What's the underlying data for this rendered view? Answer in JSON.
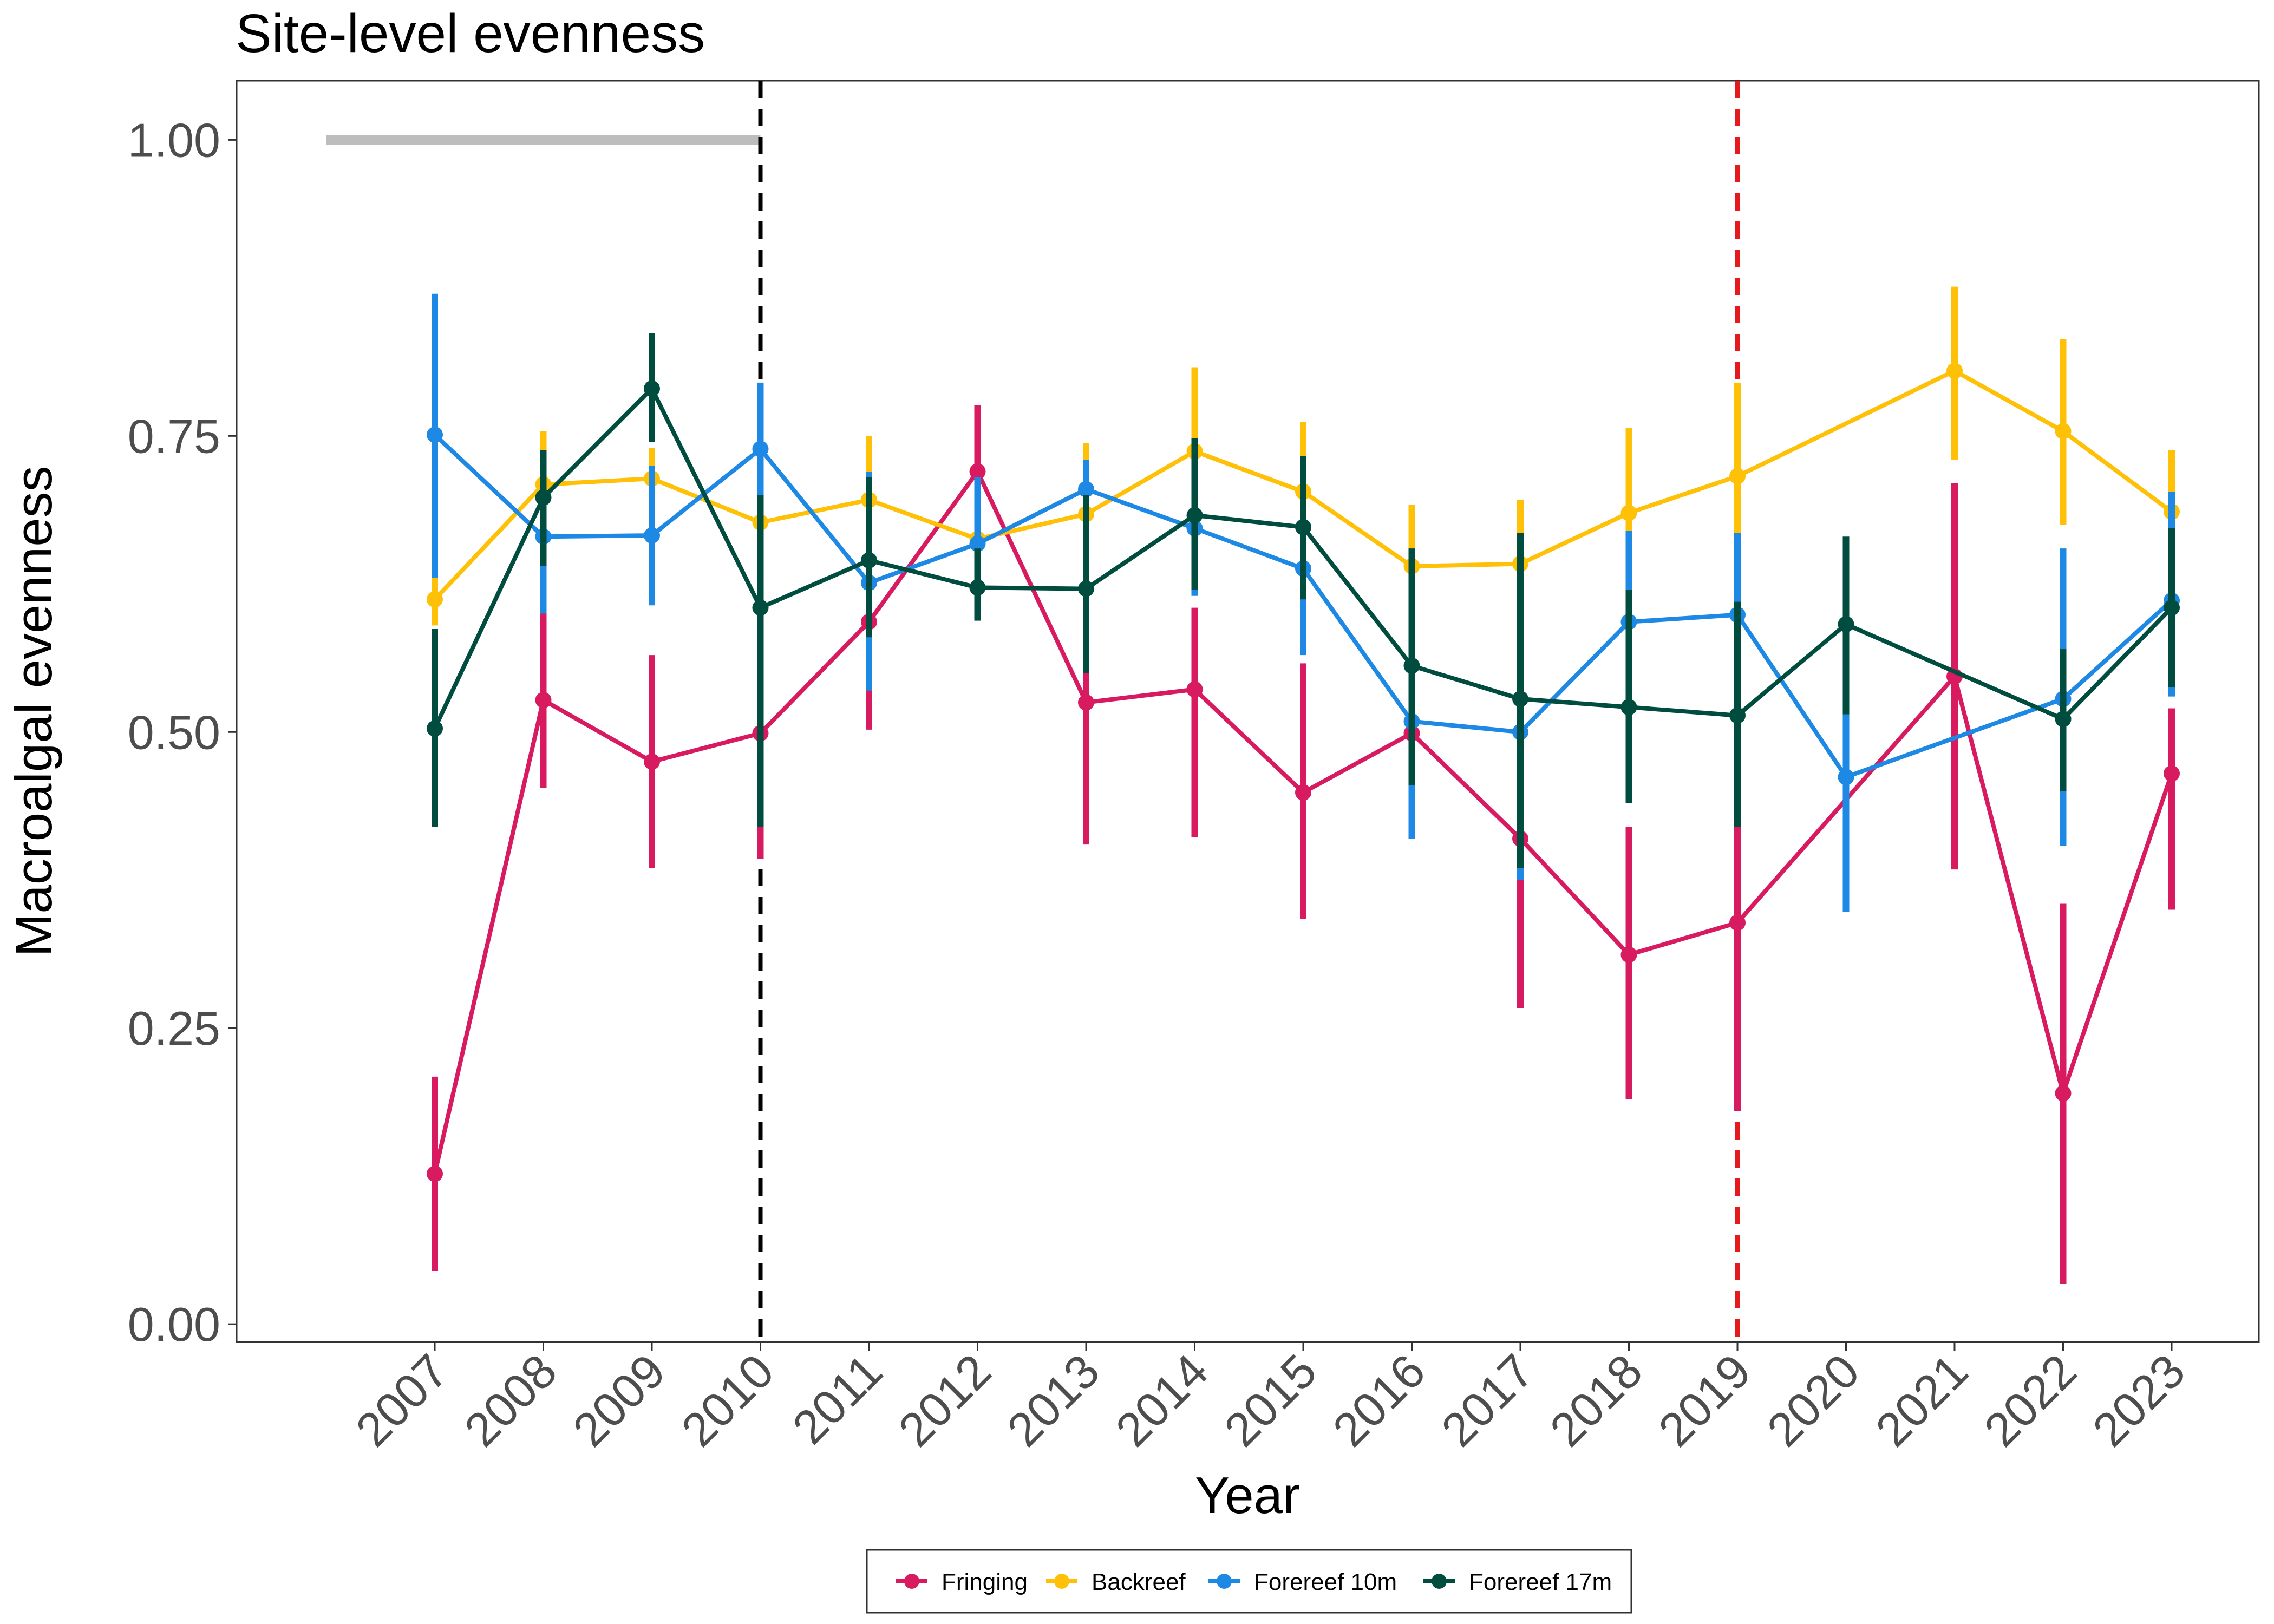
{
  "chart_data": {
    "type": "line",
    "title": "Site-level evenness",
    "xlabel": "Year",
    "ylabel": "Macroalgal evenness",
    "categories": [
      "2007",
      "2008",
      "2009",
      "2010",
      "2011",
      "2012",
      "2013",
      "2014",
      "2015",
      "2016",
      "2017",
      "2018",
      "2019",
      "2020",
      "2021",
      "2022",
      "2023"
    ],
    "ylim": [
      -0.015,
      1.05
    ],
    "yticks": [
      {
        "value": 0.0,
        "label": "0.00"
      },
      {
        "value": 0.25,
        "label": "0.25"
      },
      {
        "value": 0.5,
        "label": "0.50"
      },
      {
        "value": 0.75,
        "label": "0.75"
      },
      {
        "value": 1.0,
        "label": "1.00"
      }
    ],
    "grid": false,
    "legend_position": "bottom",
    "reference_lines": [
      {
        "type": "vertical",
        "x": "2010",
        "color": "#000000",
        "style": "dashed"
      },
      {
        "type": "vertical",
        "x": "2019",
        "color": "#e41a1c",
        "style": "dashed"
      }
    ],
    "reference_bar": {
      "y": 1.0,
      "x_start": 2006.0,
      "x_end": 2010,
      "color": "#bdbdbd"
    },
    "series": [
      {
        "name": "Fringing",
        "color": "#d81b60",
        "values": [
          0.127,
          0.527,
          0.475,
          0.499,
          0.593,
          0.72,
          0.525,
          0.536,
          0.449,
          0.499,
          0.41,
          0.312,
          0.339,
          null,
          0.547,
          0.195,
          0.465
        ],
        "lower": [
          0.045,
          0.453,
          0.385,
          0.393,
          0.502,
          0.664,
          0.405,
          0.411,
          0.342,
          null,
          0.267,
          0.19,
          0.18,
          null,
          0.384,
          0.034,
          0.35
        ],
        "upper": [
          0.209,
          0.6,
          0.565,
          0.605,
          0.685,
          0.776,
          0.645,
          0.605,
          0.558,
          null,
          0.55,
          0.42,
          0.78,
          null,
          0.71,
          0.355,
          0.52
        ]
      },
      {
        "name": "Backreef",
        "color": "#ffc107",
        "values": [
          0.612,
          0.709,
          0.714,
          0.677,
          0.696,
          0.663,
          0.684,
          0.737,
          0.703,
          0.64,
          0.642,
          0.685,
          0.716,
          null,
          0.805,
          0.754,
          0.686
        ],
        "lower": [
          0.59,
          0.665,
          0.685,
          0.62,
          0.645,
          0.615,
          0.63,
          0.67,
          0.645,
          0.595,
          0.6,
          0.62,
          0.66,
          null,
          0.73,
          0.675,
          0.635
        ],
        "upper": [
          0.632,
          0.754,
          0.74,
          0.735,
          0.75,
          0.71,
          0.744,
          0.808,
          0.762,
          0.692,
          0.696,
          0.757,
          0.795,
          null,
          0.876,
          0.832,
          0.738
        ]
      },
      {
        "name": "Forereef 10m",
        "color": "#1e88e5",
        "values": [
          0.751,
          0.665,
          0.666,
          0.739,
          0.626,
          0.659,
          0.705,
          0.672,
          0.638,
          0.509,
          0.5,
          0.593,
          0.599,
          0.462,
          null,
          0.528,
          0.611
        ],
        "lower": [
          0.63,
          0.6,
          0.607,
          0.68,
          0.535,
          0.6,
          0.64,
          0.615,
          0.565,
          0.41,
          0.375,
          0.52,
          0.53,
          0.348,
          null,
          0.404,
          0.53
        ],
        "upper": [
          0.87,
          0.73,
          0.725,
          0.795,
          0.72,
          0.715,
          0.73,
          0.73,
          0.71,
          0.61,
          0.62,
          0.67,
          0.668,
          0.515,
          null,
          0.655,
          0.703
        ]
      },
      {
        "name": "Forereef 17m",
        "color": "#004d40",
        "values": [
          0.503,
          0.698,
          0.79,
          0.605,
          0.645,
          0.622,
          0.621,
          0.683,
          0.673,
          0.556,
          0.528,
          0.521,
          0.514,
          0.591,
          null,
          0.511,
          0.605
        ],
        "lower": [
          0.42,
          0.64,
          0.745,
          0.42,
          0.58,
          0.594,
          0.55,
          0.62,
          0.612,
          0.455,
          0.385,
          0.44,
          0.42,
          0.515,
          null,
          0.45,
          0.538
        ],
        "upper": [
          0.587,
          0.738,
          0.837,
          0.7,
          0.715,
          0.655,
          0.7,
          0.748,
          0.733,
          0.655,
          0.668,
          0.62,
          0.61,
          0.665,
          null,
          0.57,
          0.672
        ]
      }
    ]
  }
}
